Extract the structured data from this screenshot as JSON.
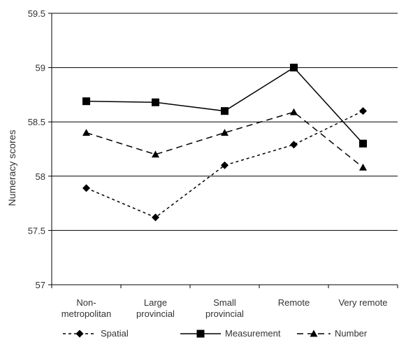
{
  "chart_data": {
    "type": "line",
    "title": "",
    "xlabel": "",
    "ylabel": "Numeracy scores",
    "categories": [
      [
        "Non-",
        "metropolitan"
      ],
      [
        "Large",
        "provincial"
      ],
      [
        "Small",
        "provincial"
      ],
      [
        "Remote"
      ],
      [
        "Very remote"
      ]
    ],
    "ylim": [
      57,
      59.5
    ],
    "yticks": [
      "57",
      "57.5",
      "58",
      "58.5",
      "59",
      "59.5"
    ],
    "grid": true,
    "legend_position": "bottom",
    "series": [
      {
        "name": "Spatial",
        "values": [
          57.89,
          57.62,
          58.1,
          58.29,
          58.6
        ],
        "marker": "diamond",
        "line_style": "dotted",
        "color": "#000000"
      },
      {
        "name": "Measurement",
        "values": [
          58.69,
          58.68,
          58.6,
          59.0,
          58.3
        ],
        "marker": "square",
        "line_style": "solid",
        "color": "#000000"
      },
      {
        "name": "Number",
        "values": [
          58.4,
          58.2,
          58.4,
          58.59,
          58.08
        ],
        "marker": "triangle",
        "line_style": "dashed",
        "color": "#000000"
      }
    ]
  }
}
